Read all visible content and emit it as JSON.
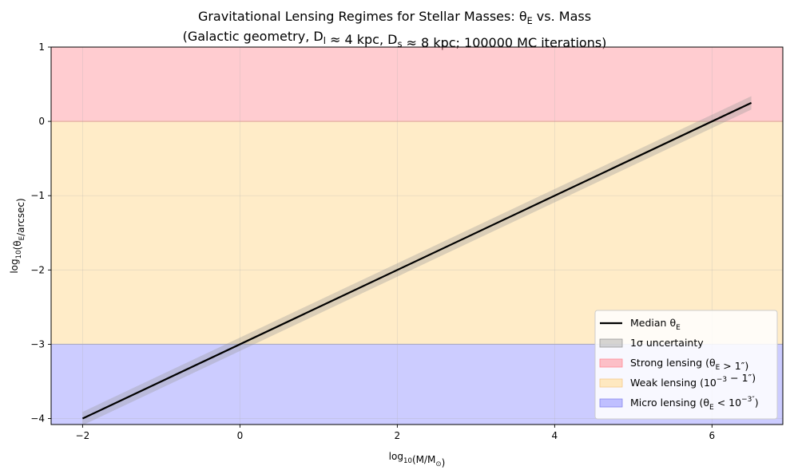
{
  "chart_data": {
    "type": "line",
    "title_line1": "Gravitational Lensing Regimes for Stellar Masses: θ",
    "title_line1_sub": "E",
    "title_line1_tail": " vs. Mass",
    "title_line2": "(Galactic geometry, D_l ≈ 4 kpc, D_s ≈ 8 kpc; 100000 MC iterations)",
    "title_line2_parts": [
      "(Galactic geometry, D",
      "l",
      " ≈ 4 kpc, D",
      "s",
      " ≈ 8 kpc; 100000 MC iterations)"
    ],
    "xlabel_parts": [
      "log",
      "10",
      "(M/M",
      "⊙",
      ")"
    ],
    "ylabel_parts": [
      "log",
      "10",
      "(θ",
      "E",
      "/arcsec)"
    ],
    "xlim": [
      -2.4,
      6.9
    ],
    "ylim": [
      -4.08,
      1.0
    ],
    "x_ticks": [
      -2,
      0,
      2,
      4,
      6
    ],
    "x_tick_labels": [
      "−2",
      "0",
      "2",
      "4",
      "6"
    ],
    "y_ticks": [
      -4,
      -3,
      -2,
      -1,
      0,
      1
    ],
    "y_tick_labels": [
      "−4",
      "−3",
      "−2",
      "−1",
      "0",
      "1"
    ],
    "grid": true,
    "regimes": [
      {
        "name": "Strong lensing",
        "y_from": 0,
        "y_to": 1,
        "color": "#ff9aa2"
      },
      {
        "name": "Weak lensing",
        "y_from": -3,
        "y_to": 0,
        "color": "#ffe4b0"
      },
      {
        "name": "Micro lensing",
        "y_from": -4.08,
        "y_to": -3,
        "color": "#9a9aff"
      }
    ],
    "median": {
      "name": "Median θE",
      "x": [
        -2,
        6.5
      ],
      "y": [
        -4.0,
        0.25
      ],
      "color": "#000000"
    },
    "uncertainty": {
      "name": "1σ uncertainty",
      "half_width": 0.09,
      "color": "#999999"
    },
    "legend_position": "lower-right",
    "legend": [
      {
        "key": "median",
        "parts": [
          "Median θ",
          "E",
          ""
        ]
      },
      {
        "key": "band",
        "parts": [
          "1σ uncertainty",
          "",
          ""
        ]
      },
      {
        "key": "strong",
        "parts": [
          "Strong lensing (θ",
          "E",
          " > 1″)"
        ]
      },
      {
        "key": "weak",
        "parts": [
          "Weak lensing (10",
          "−3",
          " − 1″)"
        ]
      },
      {
        "key": "micro",
        "parts": [
          "Micro lensing (θ",
          "E",
          " < 10",
          "−3″",
          ")"
        ]
      }
    ]
  }
}
